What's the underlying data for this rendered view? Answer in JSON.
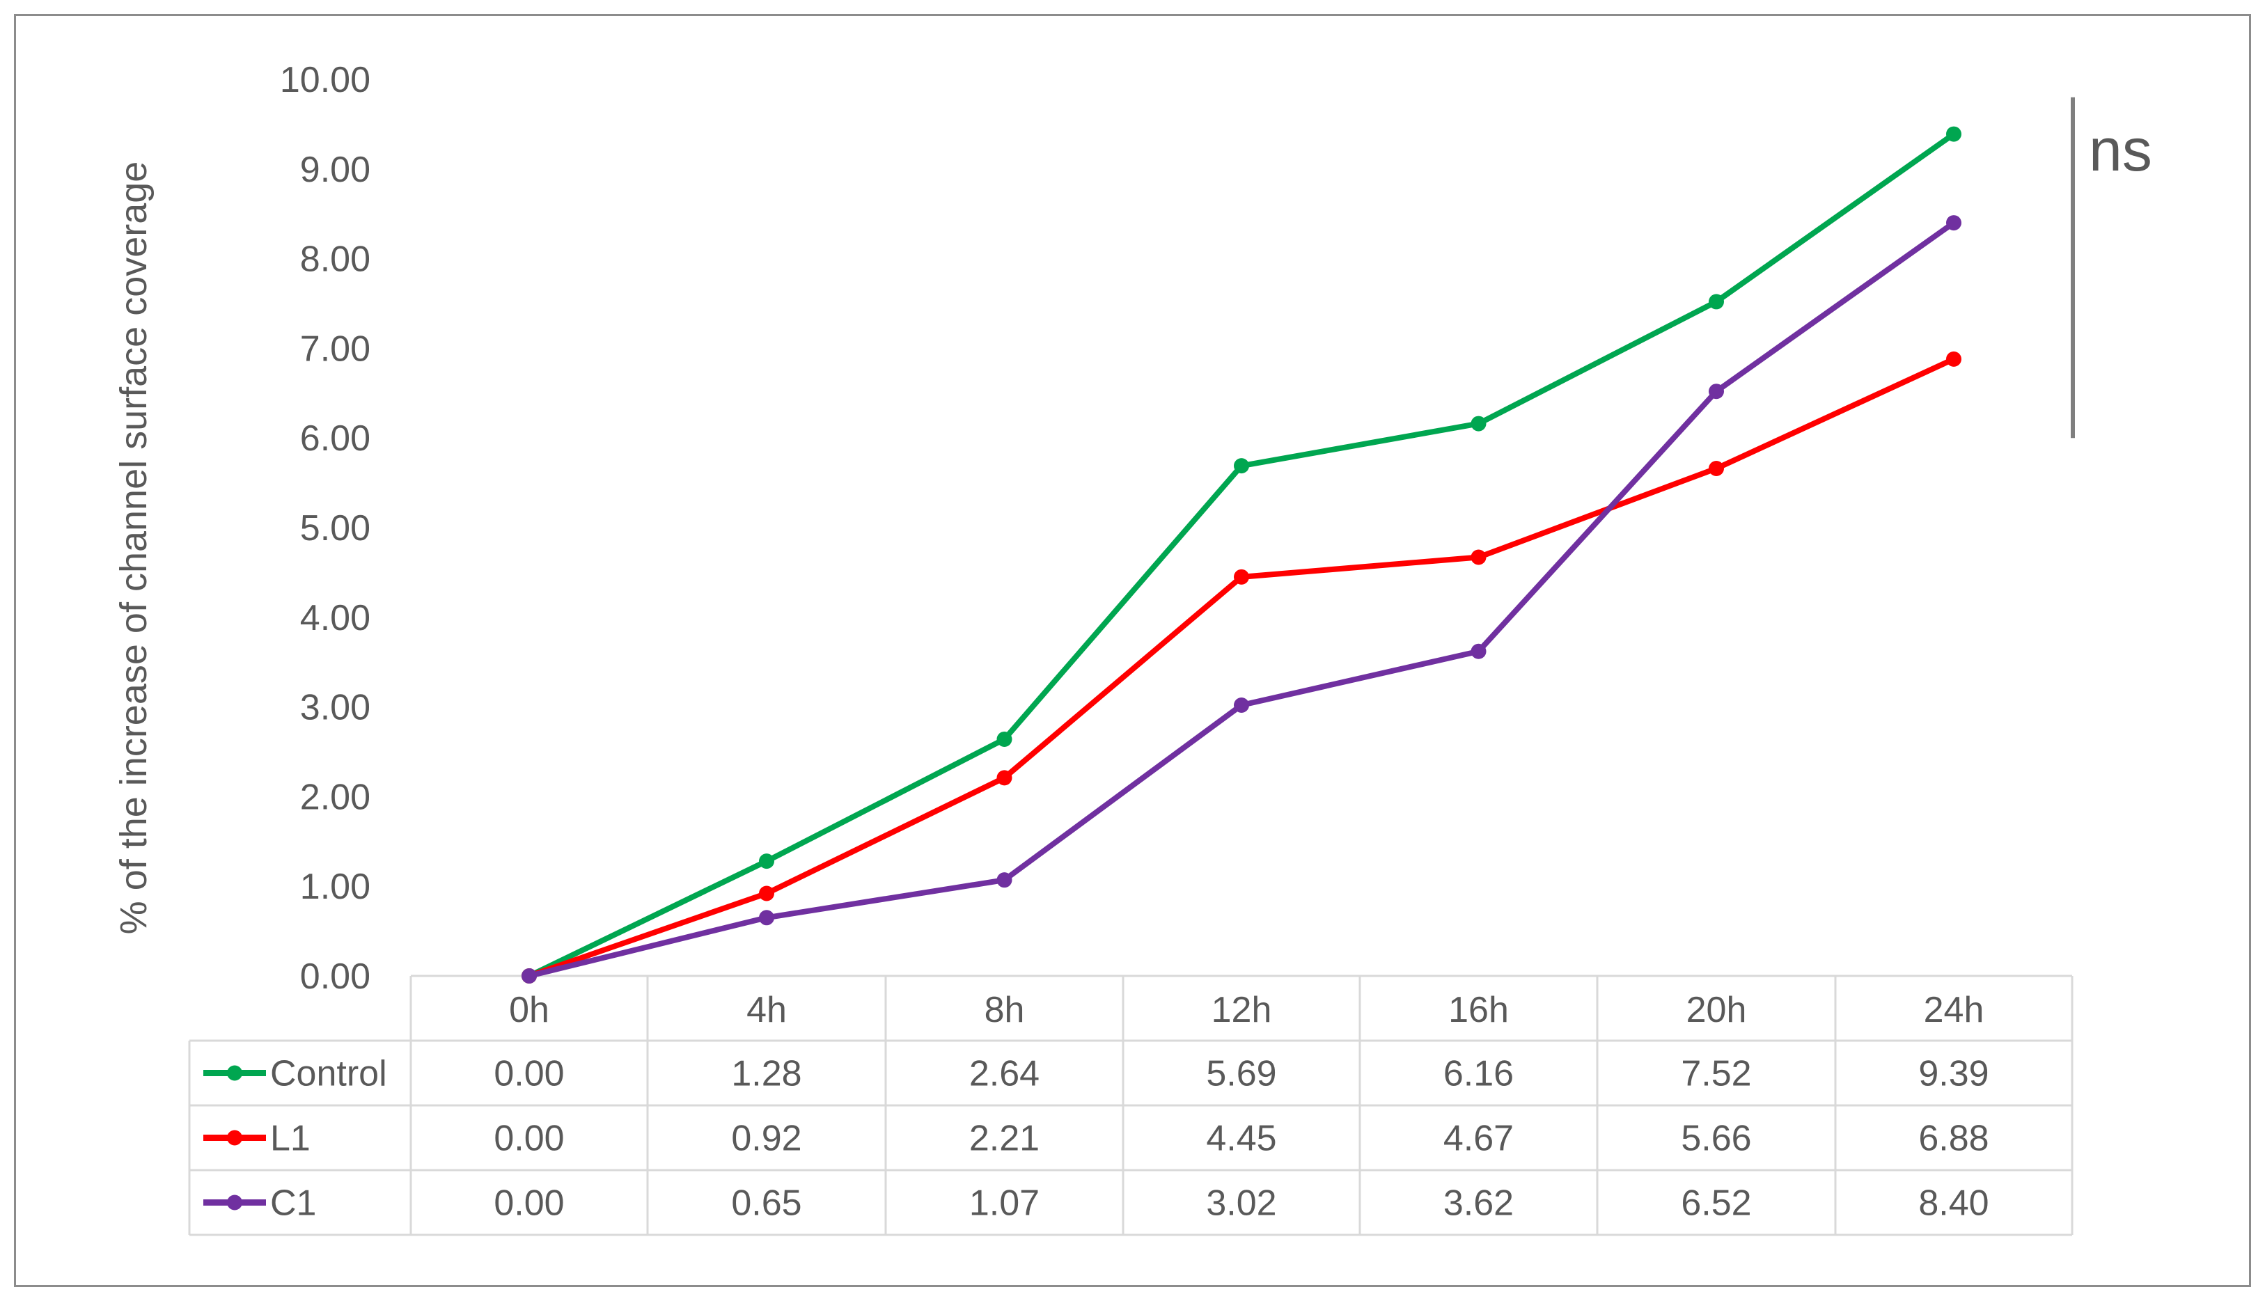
{
  "chart_data": {
    "type": "line",
    "title": "",
    "xlabel": "",
    "ylabel": "% of the increase of channel surface coverage",
    "categories": [
      "0h",
      "4h",
      "8h",
      "12h",
      "16h",
      "20h",
      "24h"
    ],
    "ylim": [
      0,
      10
    ],
    "y_ticks": [
      "0.00",
      "1.00",
      "2.00",
      "3.00",
      "4.00",
      "5.00",
      "6.00",
      "7.00",
      "8.00",
      "9.00",
      "10.00"
    ],
    "grid": false,
    "legend": "data-table",
    "series": [
      {
        "name": "Control",
        "color": "#00a650",
        "values": [
          0.0,
          1.28,
          2.64,
          5.69,
          6.16,
          7.52,
          9.39
        ],
        "labels": [
          "0.00",
          "1.28",
          "2.64",
          "5.69",
          "6.16",
          "7.52",
          "9.39"
        ]
      },
      {
        "name": "L1",
        "color": "#ff0000",
        "values": [
          0.0,
          0.92,
          2.21,
          4.45,
          4.67,
          5.66,
          6.88
        ],
        "labels": [
          "0.00",
          "0.92",
          "2.21",
          "4.45",
          "4.67",
          "5.66",
          "6.88"
        ]
      },
      {
        "name": "C1",
        "color": "#7030a0",
        "values": [
          0.0,
          0.65,
          1.07,
          3.02,
          3.62,
          6.52,
          8.4
        ],
        "labels": [
          "0.00",
          "0.65",
          "1.07",
          "3.02",
          "3.62",
          "6.52",
          "8.40"
        ]
      }
    ],
    "annotations": [
      {
        "text": "ns",
        "range": [
          6.0,
          9.8
        ]
      }
    ],
    "colors": {
      "text": "#595959",
      "table_border": "#d9d9d9",
      "annotation_bar": "#7f7f7f",
      "frame": "#8c8c8c"
    }
  }
}
